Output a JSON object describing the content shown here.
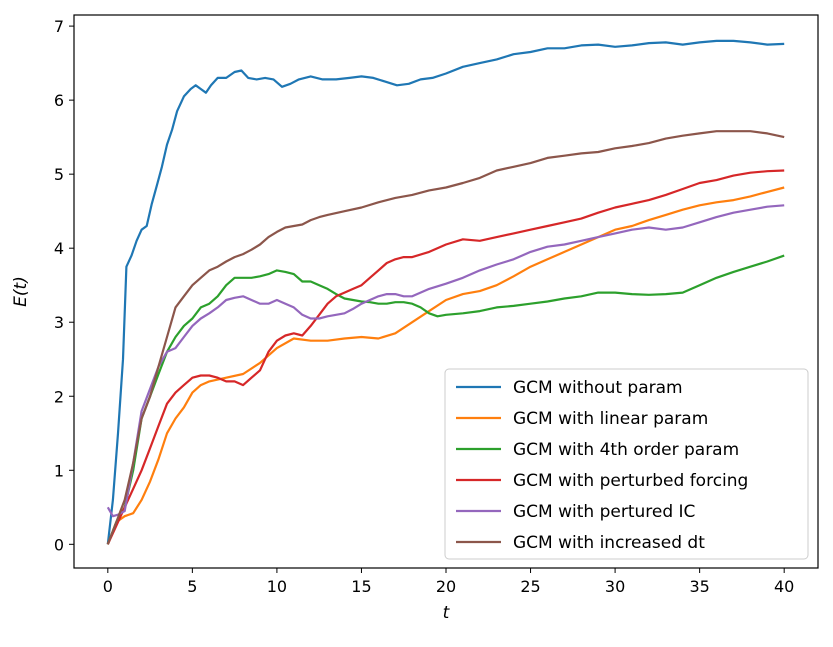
{
  "chart_data": {
    "type": "line",
    "xlabel": "t",
    "ylabel": "E(t)",
    "xlim": [
      -2,
      42
    ],
    "ylim": [
      -0.32,
      7.15
    ],
    "xticks": [
      0,
      5,
      10,
      15,
      20,
      25,
      30,
      35,
      40
    ],
    "yticks": [
      0,
      1,
      2,
      3,
      4,
      5,
      6,
      7
    ],
    "grid": false,
    "legend_position": "lower-right",
    "series": [
      {
        "name": "GCM without param",
        "color": "#1f77b4",
        "x": [
          0,
          0.3,
          0.6,
          0.9,
          1.1,
          1.4,
          1.7,
          2.0,
          2.3,
          2.6,
          2.9,
          3.2,
          3.5,
          3.8,
          4.1,
          4.5,
          4.9,
          5.2,
          5.5,
          5.8,
          6.1,
          6.5,
          7.0,
          7.5,
          7.9,
          8.3,
          8.8,
          9.3,
          9.8,
          10.3,
          10.8,
          11.3,
          12.0,
          12.7,
          13.5,
          14.3,
          15.0,
          15.7,
          16.4,
          17.1,
          17.8,
          18.5,
          19.2,
          20.0,
          21.0,
          22.0,
          23.0,
          24.0,
          25.0,
          26.0,
          27.0,
          28.0,
          29.0,
          30.0,
          31.0,
          32.0,
          33.0,
          34.0,
          35.0,
          36.0,
          37.0,
          38.0,
          39.0,
          40.0
        ],
        "values": [
          0.0,
          0.6,
          1.5,
          2.5,
          3.75,
          3.9,
          4.1,
          4.25,
          4.3,
          4.6,
          4.85,
          5.1,
          5.4,
          5.6,
          5.85,
          6.05,
          6.15,
          6.2,
          6.15,
          6.1,
          6.2,
          6.3,
          6.3,
          6.38,
          6.4,
          6.3,
          6.28,
          6.3,
          6.28,
          6.18,
          6.22,
          6.28,
          6.32,
          6.28,
          6.28,
          6.3,
          6.32,
          6.3,
          6.25,
          6.2,
          6.22,
          6.28,
          6.3,
          6.36,
          6.45,
          6.5,
          6.55,
          6.62,
          6.65,
          6.7,
          6.7,
          6.74,
          6.75,
          6.72,
          6.74,
          6.77,
          6.78,
          6.75,
          6.78,
          6.8,
          6.8,
          6.78,
          6.75,
          6.76
        ]
      },
      {
        "name": "GCM with linear param",
        "color": "#ff7f0e",
        "x": [
          0,
          0.5,
          1.0,
          1.5,
          2.0,
          2.5,
          3.0,
          3.5,
          4.0,
          4.5,
          5.0,
          5.5,
          6.0,
          7.0,
          8.0,
          9.0,
          10.0,
          11.0,
          12.0,
          13.0,
          14.0,
          15.0,
          16.0,
          17.0,
          18.0,
          19.0,
          20.0,
          21.0,
          22.0,
          23.0,
          24.0,
          25.0,
          26.0,
          27.0,
          28.0,
          29.0,
          30.0,
          31.0,
          32.0,
          33.0,
          34.0,
          35.0,
          36.0,
          37.0,
          38.0,
          39.0,
          40.0
        ],
        "values": [
          0.0,
          0.3,
          0.38,
          0.42,
          0.6,
          0.85,
          1.15,
          1.5,
          1.7,
          1.85,
          2.05,
          2.15,
          2.2,
          2.25,
          2.3,
          2.45,
          2.65,
          2.78,
          2.75,
          2.75,
          2.78,
          2.8,
          2.78,
          2.85,
          3.0,
          3.15,
          3.3,
          3.38,
          3.42,
          3.5,
          3.62,
          3.75,
          3.85,
          3.95,
          4.05,
          4.15,
          4.25,
          4.3,
          4.38,
          4.45,
          4.52,
          4.58,
          4.62,
          4.65,
          4.7,
          4.76,
          4.82
        ]
      },
      {
        "name": "GCM with 4th order param",
        "color": "#2ca02c",
        "x": [
          0,
          0.5,
          1.0,
          1.5,
          2.0,
          2.5,
          3.0,
          3.5,
          4.0,
          4.5,
          5.0,
          5.5,
          6.0,
          6.5,
          7.0,
          7.5,
          8.0,
          8.5,
          9.0,
          9.5,
          10.0,
          10.5,
          11.0,
          11.5,
          12.0,
          12.5,
          13.0,
          13.5,
          14.0,
          14.5,
          15.0,
          15.5,
          16.0,
          16.5,
          17.0,
          17.5,
          18.0,
          18.5,
          19.0,
          19.5,
          20.0,
          21.0,
          22.0,
          23.0,
          24.0,
          25.0,
          26.0,
          27.0,
          28.0,
          29.0,
          30.0,
          31.0,
          32.0,
          33.0,
          34.0,
          35.0,
          36.0,
          37.0,
          38.0,
          39.0,
          40.0
        ],
        "values": [
          0.0,
          0.3,
          0.5,
          1.0,
          1.7,
          2.0,
          2.3,
          2.6,
          2.8,
          2.95,
          3.05,
          3.2,
          3.25,
          3.35,
          3.5,
          3.6,
          3.6,
          3.6,
          3.62,
          3.65,
          3.7,
          3.68,
          3.65,
          3.55,
          3.55,
          3.5,
          3.45,
          3.38,
          3.32,
          3.3,
          3.28,
          3.27,
          3.25,
          3.25,
          3.27,
          3.27,
          3.25,
          3.2,
          3.12,
          3.08,
          3.1,
          3.12,
          3.15,
          3.2,
          3.22,
          3.25,
          3.28,
          3.32,
          3.35,
          3.4,
          3.4,
          3.38,
          3.37,
          3.38,
          3.4,
          3.5,
          3.6,
          3.68,
          3.75,
          3.82,
          3.9
        ]
      },
      {
        "name": "GCM with perturbed forcing",
        "color": "#d62728",
        "x": [
          0,
          0.5,
          1.0,
          1.5,
          2.0,
          2.5,
          3.0,
          3.5,
          4.0,
          4.5,
          5.0,
          5.5,
          6.0,
          6.5,
          7.0,
          7.5,
          8.0,
          8.5,
          9.0,
          9.5,
          10.0,
          10.5,
          11.0,
          11.5,
          12.0,
          12.5,
          13.0,
          13.5,
          14.0,
          14.5,
          15.0,
          15.5,
          16.0,
          16.5,
          17.0,
          17.5,
          18.0,
          19.0,
          20.0,
          21.0,
          22.0,
          23.0,
          24.0,
          25.0,
          26.0,
          27.0,
          28.0,
          29.0,
          30.0,
          31.0,
          32.0,
          33.0,
          34.0,
          35.0,
          36.0,
          37.0,
          38.0,
          39.0,
          40.0
        ],
        "values": [
          0.0,
          0.25,
          0.5,
          0.75,
          1.0,
          1.3,
          1.6,
          1.9,
          2.05,
          2.15,
          2.25,
          2.28,
          2.28,
          2.25,
          2.2,
          2.2,
          2.15,
          2.25,
          2.35,
          2.6,
          2.75,
          2.82,
          2.85,
          2.82,
          2.95,
          3.1,
          3.25,
          3.35,
          3.4,
          3.45,
          3.5,
          3.6,
          3.7,
          3.8,
          3.85,
          3.88,
          3.88,
          3.95,
          4.05,
          4.12,
          4.1,
          4.15,
          4.2,
          4.25,
          4.3,
          4.35,
          4.4,
          4.48,
          4.55,
          4.6,
          4.65,
          4.72,
          4.8,
          4.88,
          4.92,
          4.98,
          5.02,
          5.04,
          5.05
        ]
      },
      {
        "name": "GCM with pertured IC",
        "color": "#9467bd",
        "x": [
          0,
          0.3,
          0.6,
          1.0,
          1.5,
          2.0,
          2.5,
          3.0,
          3.5,
          4.0,
          4.5,
          5.0,
          5.5,
          6.0,
          6.5,
          7.0,
          7.5,
          8.0,
          8.5,
          9.0,
          9.5,
          10.0,
          10.5,
          11.0,
          11.5,
          12.0,
          12.5,
          13.0,
          13.5,
          14.0,
          14.5,
          15.0,
          15.5,
          16.0,
          16.5,
          17.0,
          17.5,
          18.0,
          19.0,
          20.0,
          21.0,
          22.0,
          23.0,
          24.0,
          25.0,
          26.0,
          27.0,
          28.0,
          29.0,
          30.0,
          31.0,
          32.0,
          33.0,
          34.0,
          35.0,
          36.0,
          37.0,
          38.0,
          39.0,
          40.0
        ],
        "values": [
          0.5,
          0.38,
          0.4,
          0.45,
          1.1,
          1.8,
          2.1,
          2.4,
          2.6,
          2.65,
          2.8,
          2.95,
          3.05,
          3.12,
          3.2,
          3.3,
          3.33,
          3.35,
          3.3,
          3.25,
          3.25,
          3.3,
          3.25,
          3.2,
          3.1,
          3.05,
          3.05,
          3.08,
          3.1,
          3.12,
          3.18,
          3.25,
          3.3,
          3.35,
          3.38,
          3.38,
          3.35,
          3.35,
          3.45,
          3.52,
          3.6,
          3.7,
          3.78,
          3.85,
          3.95,
          4.02,
          4.05,
          4.1,
          4.15,
          4.2,
          4.25,
          4.28,
          4.25,
          4.28,
          4.35,
          4.42,
          4.48,
          4.52,
          4.56,
          4.58
        ]
      },
      {
        "name": "GCM with increased dt",
        "color": "#8c564b",
        "x": [
          0,
          0.5,
          1.0,
          1.5,
          2.0,
          2.5,
          3.0,
          3.5,
          4.0,
          4.5,
          5.0,
          5.5,
          6.0,
          6.5,
          7.0,
          7.5,
          8.0,
          8.5,
          9.0,
          9.5,
          10.0,
          10.5,
          11.0,
          11.5,
          12.0,
          12.5,
          13.0,
          14.0,
          15.0,
          16.0,
          17.0,
          18.0,
          19.0,
          20.0,
          21.0,
          22.0,
          23.0,
          24.0,
          25.0,
          26.0,
          27.0,
          28.0,
          29.0,
          30.0,
          31.0,
          32.0,
          33.0,
          34.0,
          35.0,
          36.0,
          37.0,
          38.0,
          39.0,
          40.0
        ],
        "values": [
          0.0,
          0.3,
          0.6,
          1.1,
          1.7,
          2.0,
          2.4,
          2.8,
          3.2,
          3.35,
          3.5,
          3.6,
          3.7,
          3.75,
          3.82,
          3.88,
          3.92,
          3.98,
          4.05,
          4.15,
          4.22,
          4.28,
          4.3,
          4.32,
          4.38,
          4.42,
          4.45,
          4.5,
          4.55,
          4.62,
          4.68,
          4.72,
          4.78,
          4.82,
          4.88,
          4.95,
          5.05,
          5.1,
          5.15,
          5.22,
          5.25,
          5.28,
          5.3,
          5.35,
          5.38,
          5.42,
          5.48,
          5.52,
          5.55,
          5.58,
          5.58,
          5.58,
          5.55,
          5.5
        ]
      }
    ]
  }
}
